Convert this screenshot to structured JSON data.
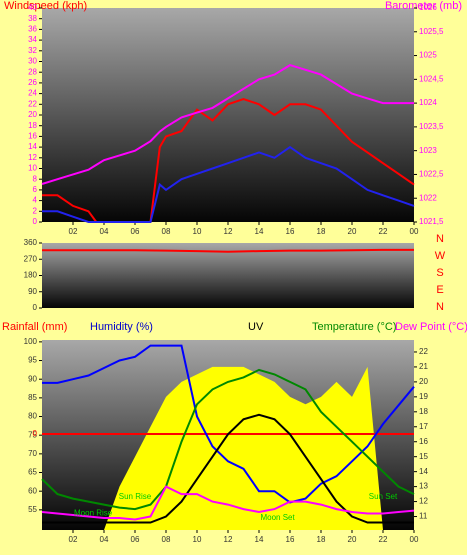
{
  "chart_data": [
    {
      "type": "line",
      "y_label": "Windspeed (kph)",
      "y2_label": "Barometer (mb)",
      "x": [
        0,
        1,
        2,
        3,
        3.5,
        4,
        5,
        6,
        7,
        7.6,
        8,
        9,
        10,
        11,
        12,
        13,
        14,
        15,
        16,
        17,
        18,
        19,
        20,
        21,
        22,
        23,
        24
      ],
      "xlim": [
        0,
        24
      ],
      "xticks": [
        {
          "value": 2,
          "label": "02"
        },
        {
          "value": 4,
          "label": "04"
        },
        {
          "value": 6,
          "label": "06"
        },
        {
          "value": 8,
          "label": "08"
        },
        10,
        12,
        14,
        16,
        18,
        20,
        22,
        {
          "value": 24,
          "label": "00"
        }
      ],
      "ylim": [
        0,
        40
      ],
      "yticks": [
        0,
        2,
        4,
        6,
        8,
        10,
        12,
        14,
        16,
        18,
        20,
        22,
        24,
        26,
        28,
        30,
        32,
        34,
        36,
        38,
        40
      ],
      "y2lim": [
        1021.5,
        1026
      ],
      "y2ticks": [
        {
          "value": 1021.5,
          "label": "1021,5"
        },
        1022,
        {
          "value": 1022.5,
          "label": "1022,5"
        },
        1023,
        {
          "value": 1023.5,
          "label": "1023,5"
        },
        1024,
        {
          "value": 1024.5,
          "label": "1024,5"
        },
        1025,
        {
          "value": 1025.5,
          "label": "1025,5"
        },
        1026
      ],
      "series": [
        {
          "color": "#ff0000",
          "values": [
            5,
            5,
            3,
            2,
            0,
            0,
            0,
            0,
            0,
            14,
            16,
            17,
            21,
            19,
            22,
            23,
            22,
            20,
            22,
            22,
            21,
            18,
            15,
            13,
            11,
            9,
            7
          ]
        },
        {
          "color": "#2222ee",
          "values": [
            2,
            2,
            1,
            0,
            0,
            0,
            0,
            0,
            0,
            7,
            6,
            8,
            9,
            10,
            11,
            12,
            13,
            12,
            14,
            12,
            11,
            10,
            8,
            6,
            5,
            4,
            3
          ]
        },
        {
          "color": "#ff00ff",
          "axis": "y2",
          "values": [
            1022.3,
            1022.4,
            1022.5,
            1022.6,
            1022.7,
            1022.8,
            1022.9,
            1023.0,
            1023.2,
            1023.4,
            1023.5,
            1023.7,
            1023.8,
            1023.9,
            1024.1,
            1024.3,
            1024.5,
            1024.6,
            1024.8,
            1024.7,
            1024.6,
            1024.4,
            1024.2,
            1024.1,
            1024.0,
            1024.0,
            1024.0
          ]
        }
      ]
    },
    {
      "type": "line",
      "x": [
        0,
        2,
        4,
        6,
        8,
        10,
        12,
        14,
        16,
        18,
        20,
        22,
        24
      ],
      "xlim": [
        0,
        24
      ],
      "ylim": [
        0,
        360
      ],
      "yticks": [
        0,
        90,
        180,
        270,
        360
      ],
      "y2_labels": [
        "N",
        "W",
        "S",
        "E",
        "N"
      ],
      "series": [
        {
          "color": "#ff0000",
          "values": [
            320,
            320,
            320,
            320,
            318,
            315,
            312,
            315,
            318,
            318,
            320,
            322,
            322
          ]
        }
      ]
    },
    {
      "type": "line",
      "labels": [
        {
          "text": "Rainfall (mm)",
          "color": "#ff0000"
        },
        {
          "text": "Humidity (%)",
          "color": "#0000cc"
        },
        {
          "text": "UV",
          "color": "#000000"
        },
        {
          "text": "Temperature (°C)",
          "color": "#008800"
        },
        {
          "text": "Dew Point (°C)",
          "color": "#ff00ff"
        }
      ],
      "x": [
        0,
        1,
        2,
        3,
        4,
        5,
        6,
        7,
        8,
        9,
        10,
        11,
        12,
        13,
        14,
        15,
        16,
        17,
        18,
        19,
        20,
        21,
        22,
        23,
        24
      ],
      "xlim": [
        0,
        24
      ],
      "xticks": [
        {
          "value": 2,
          "label": "02"
        },
        {
          "value": 4,
          "label": "04"
        },
        {
          "value": 6,
          "label": "06"
        },
        {
          "value": 8,
          "label": "08"
        },
        10,
        12,
        14,
        16,
        18,
        20,
        22,
        {
          "value": 24,
          "label": "00"
        }
      ],
      "ylim": [
        49.6,
        100.5
      ],
      "yticks": [
        55,
        60,
        65,
        70,
        75,
        80,
        85,
        90,
        95,
        100
      ],
      "y2lim": [
        10.1,
        22.8
      ],
      "y2ticks": [
        11,
        12,
        13,
        14,
        15,
        16,
        17,
        18,
        19,
        20,
        21,
        22
      ],
      "rain_ticks": [
        0
      ],
      "series": [
        {
          "type": "area",
          "color": "#ffff00",
          "axis": "y2",
          "values": [
            10.1,
            10.1,
            10.1,
            10.1,
            10.1,
            13,
            15,
            17,
            19,
            20,
            20.5,
            21,
            21,
            21,
            20.5,
            20,
            19,
            18.5,
            19,
            20,
            19,
            21,
            10.1,
            10.1,
            10.1
          ]
        },
        {
          "color": "#ff0000",
          "axis": "rain",
          "values": [
            0,
            0,
            0,
            0,
            0,
            0,
            0,
            0,
            0,
            0,
            0,
            0,
            0,
            0,
            0,
            0,
            0,
            0,
            0,
            0,
            0,
            0,
            0,
            0,
            0
          ]
        },
        {
          "color": "#0000ff",
          "values": [
            89,
            89,
            90,
            91,
            93,
            95,
            96,
            99,
            99,
            99,
            80,
            72,
            68,
            66,
            60,
            60,
            57,
            58,
            62,
            64,
            68,
            72,
            78,
            83,
            88
          ]
        },
        {
          "color": "#000000",
          "axis": "y2",
          "values": [
            10.6,
            10.6,
            10.6,
            10.6,
            10.6,
            10.6,
            10.6,
            10.6,
            11,
            12,
            13.5,
            15,
            16.5,
            17.5,
            17.8,
            17.5,
            16.5,
            15,
            13.5,
            12,
            11,
            10.6,
            10.6,
            10.6,
            10.6
          ]
        },
        {
          "color": "#008800",
          "axis": "y2",
          "values": [
            13.5,
            12.5,
            12.2,
            12,
            11.8,
            11.6,
            11.5,
            11.8,
            13,
            16,
            18.5,
            19.5,
            20,
            20.3,
            20.8,
            20.5,
            20,
            19.5,
            18,
            17,
            16,
            15,
            14,
            13,
            12.5
          ]
        },
        {
          "color": "#ff00ff",
          "axis": "y2",
          "values": [
            11.3,
            11.2,
            11.1,
            11,
            10.9,
            10.9,
            10.8,
            11,
            13,
            12.5,
            12.5,
            12,
            11.8,
            11.5,
            11.3,
            11.5,
            12,
            12,
            11.8,
            11.5,
            11.3,
            11.2,
            11.2,
            11.3,
            11.4
          ]
        }
      ],
      "annotations": [
        {
          "text": "Moon Rise",
          "x": 3.3,
          "y": 11.2
        },
        {
          "text": "Sun Rise",
          "x": 6,
          "y": 12.3
        },
        {
          "text": "Moon Set",
          "x": 15.2,
          "y": 10.9
        },
        {
          "text": "Sun Set",
          "x": 22,
          "y": 12.3
        }
      ]
    }
  ]
}
